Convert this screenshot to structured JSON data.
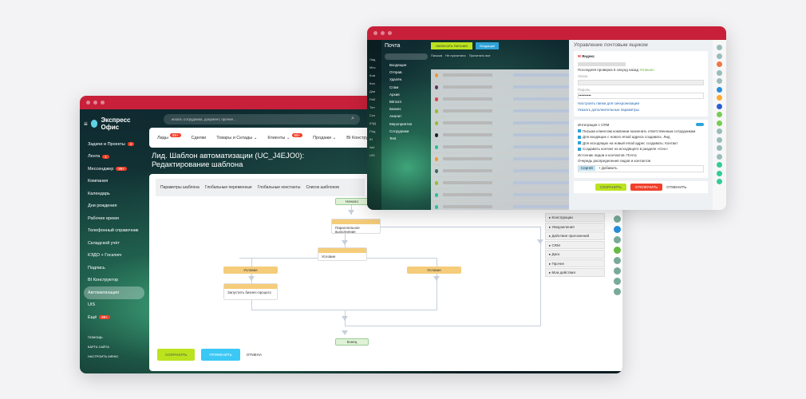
{
  "back": {
    "brand": "Экспресс Офис",
    "search_placeholder": "искать сотрудника, документ, прочее...",
    "sidebar": [
      {
        "label": "Задачи и Проекты",
        "badge": "4"
      },
      {
        "label": "Лента",
        "badge": "1"
      },
      {
        "label": "Мессенджер",
        "badge": "99+"
      },
      {
        "label": "Компания"
      },
      {
        "label": "Календарь"
      },
      {
        "label": "Дни рождения"
      },
      {
        "label": "Рабочее время"
      },
      {
        "label": "Телефонный справочник"
      },
      {
        "label": "Складской учёт"
      },
      {
        "label": "КЭДО + Госключ"
      },
      {
        "label": "Подпись"
      },
      {
        "label": "BI Конструктор"
      },
      {
        "label": "Автоматизация",
        "active": true
      },
      {
        "label": "UIS"
      },
      {
        "label": "Ещё",
        "badge": "99+"
      }
    ],
    "sidebar_small": [
      "ПОМОЩЬ",
      "КАРТА САЙТА",
      "НАСТРОИТЬ МЕНЮ"
    ],
    "tabs": [
      {
        "label": "Лиды",
        "badge": "99+"
      },
      {
        "label": "Сделки"
      },
      {
        "label": "Товары и Склады ⌄"
      },
      {
        "label": "Клиенты ⌄",
        "badge": "99+"
      },
      {
        "label": "Продажи ⌄"
      },
      {
        "label": "BI Конструк"
      }
    ],
    "page_title": "Лид. Шаблон автоматизации (UC_J4EJO0): Редактирование шаблона",
    "toolbar": [
      "Параметры шаблона",
      "Глобальные переменные",
      "Глобальные константы",
      "Список шаблонов"
    ],
    "flow": {
      "start": "Начало",
      "parallel": "Параллельное выполнение",
      "condition": "Условие",
      "branch_left": "Условие",
      "branch_right": "Условие",
      "run_bp": "Запустить бизнес-процесс",
      "end": "Конец"
    },
    "actions": [
      "Конструкции",
      "Уведомления",
      "Действия приложений",
      "CRM",
      "Диск",
      "Прочее",
      "Мои действия"
    ],
    "buttons": {
      "save": "СОХРАНИТЬ",
      "apply": "ПРИМЕНИТЬ",
      "cancel": "ОТМЕНА"
    },
    "colors": {
      "titlebar": "#c8203a",
      "save": "#bbe31e",
      "apply": "#3bc8f5"
    }
  },
  "front": {
    "section": "Почта",
    "new_mail": "НАПИСАТЬ ПИСЬМО",
    "folder_filter": "Входящие",
    "filters": [
      "Письма",
      "Не прочитано",
      "Прочитать все"
    ],
    "folders": [
      "Входящие",
      "Отправ.",
      "Удалён.",
      "Спам",
      "Архив",
      "Bitrix24",
      "Бизнес",
      "Аналит",
      "Мероприятия",
      "Сотрудники",
      "Test"
    ],
    "side_short": [
      "Лид",
      "Мес",
      "Ком",
      "Кал",
      "Дни",
      "Раб",
      "Тел",
      "Скл",
      "КЭД",
      "Под",
      "BI",
      "Авт",
      "UIS"
    ],
    "panel_title": "Управление почтовым ящиком",
    "provider": "Яндекс",
    "last_check": "Последняя проверка 5 секунд назад",
    "status": "Успешно",
    "login_label": "Логин",
    "password_label": "Пароль",
    "password_value": "••••••••••",
    "link_sync": "Настроить папки для синхронизации",
    "link_extra": "Указать дополнительные параметры",
    "crm_title": "Интеграция с CRM",
    "crm_options": [
      "Письма клиентам компании назначать ответственным сотрудникам",
      "Для входящих с нового email адреса создавать: Лид",
      "Для исходящих на новый email адрес создавать: Контакт",
      "Создавать контакт из исходящего в разделе «Сео»"
    ],
    "source_label": "Источник лидов и контактов: Почта",
    "queue_label": "Очередь распределения лидов и контактов",
    "queue_tag": "Сергей",
    "queue_add": "+ Добавить",
    "buttons": {
      "save": "СОХРАНИТЬ",
      "disable": "ОТКЛЮЧИТЬ",
      "cancel": "ОТМЕНИТЬ"
    },
    "colors": {
      "save": "#bbe31e",
      "disable": "#f0402a"
    }
  }
}
